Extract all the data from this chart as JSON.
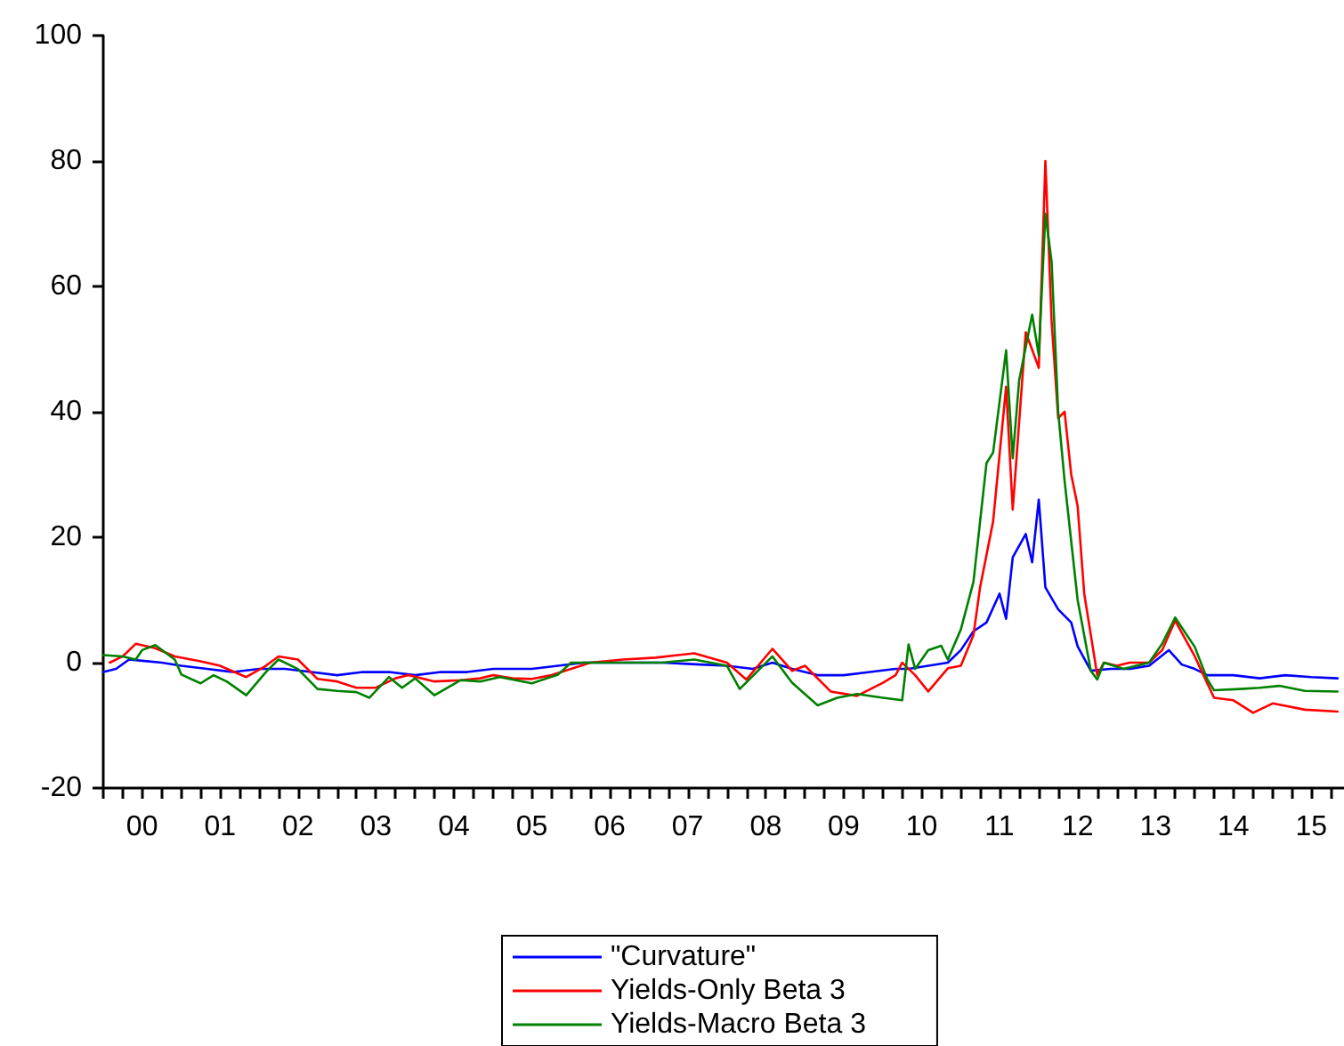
{
  "chart_data": {
    "type": "line",
    "legend": "bottom",
    "grid": false,
    "marker": "none",
    "line_style": "solid",
    "xlim": [
      "2000-01",
      "2015-12"
    ],
    "xticks": [
      {
        "value": "2000-01",
        "label": null
      },
      {
        "value": "2000-04",
        "label": null
      },
      {
        "value": "2000-07",
        "label": "00"
      },
      {
        "value": "2000-10",
        "label": null
      },
      {
        "value": "2001-01",
        "label": null
      },
      {
        "value": "2001-04",
        "label": null
      },
      {
        "value": "2001-07",
        "label": "01"
      },
      {
        "value": "2001-10",
        "label": null
      },
      {
        "value": "2002-01",
        "label": null
      },
      {
        "value": "2002-04",
        "label": null
      },
      {
        "value": "2002-07",
        "label": "02"
      },
      {
        "value": "2002-10",
        "label": null
      },
      {
        "value": "2003-01",
        "label": null
      },
      {
        "value": "2003-04",
        "label": null
      },
      {
        "value": "2003-07",
        "label": "03"
      },
      {
        "value": "2003-10",
        "label": null
      },
      {
        "value": "2004-01",
        "label": null
      },
      {
        "value": "2004-04",
        "label": null
      },
      {
        "value": "2004-07",
        "label": "04"
      },
      {
        "value": "2004-10",
        "label": null
      },
      {
        "value": "2005-01",
        "label": null
      },
      {
        "value": "2005-04",
        "label": null
      },
      {
        "value": "2005-07",
        "label": "05"
      },
      {
        "value": "2005-10",
        "label": null
      },
      {
        "value": "2006-01",
        "label": null
      },
      {
        "value": "2006-04",
        "label": null
      },
      {
        "value": "2006-07",
        "label": "06"
      },
      {
        "value": "2006-10",
        "label": null
      },
      {
        "value": "2007-01",
        "label": null
      },
      {
        "value": "2007-04",
        "label": null
      },
      {
        "value": "2007-07",
        "label": "07"
      },
      {
        "value": "2007-10",
        "label": null
      },
      {
        "value": "2008-01",
        "label": null
      },
      {
        "value": "2008-04",
        "label": null
      },
      {
        "value": "2008-07",
        "label": "08"
      },
      {
        "value": "2008-10",
        "label": null
      },
      {
        "value": "2009-01",
        "label": null
      },
      {
        "value": "2009-04",
        "label": null
      },
      {
        "value": "2009-07",
        "label": "09"
      },
      {
        "value": "2009-10",
        "label": null
      },
      {
        "value": "2010-01",
        "label": null
      },
      {
        "value": "2010-04",
        "label": null
      },
      {
        "value": "2010-07",
        "label": "10"
      },
      {
        "value": "2010-10",
        "label": null
      },
      {
        "value": "2011-01",
        "label": null
      },
      {
        "value": "2011-04",
        "label": null
      },
      {
        "value": "2011-07",
        "label": "11"
      },
      {
        "value": "2011-10",
        "label": null
      },
      {
        "value": "2012-01",
        "label": null
      },
      {
        "value": "2012-04",
        "label": null
      },
      {
        "value": "2012-07",
        "label": "12"
      },
      {
        "value": "2012-10",
        "label": null
      },
      {
        "value": "2013-01",
        "label": null
      },
      {
        "value": "2013-04",
        "label": null
      },
      {
        "value": "2013-07",
        "label": "13"
      },
      {
        "value": "2013-10",
        "label": null
      },
      {
        "value": "2014-01",
        "label": null
      },
      {
        "value": "2014-04",
        "label": null
      },
      {
        "value": "2014-07",
        "label": "14"
      },
      {
        "value": "2014-10",
        "label": null
      },
      {
        "value": "2015-01",
        "label": null
      },
      {
        "value": "2015-04",
        "label": null
      },
      {
        "value": "2015-07",
        "label": "15"
      },
      {
        "value": "2015-10",
        "label": null
      }
    ],
    "ylim": [
      -20,
      100
    ],
    "yticks": [
      -20,
      0,
      20,
      40,
      60,
      80,
      100
    ],
    "series": [
      {
        "name": "\"Curvature\"",
        "color": "#0000ff",
        "x": [
          "2000-01",
          "2000-03",
          "2000-05",
          "2000-07",
          "2000-10",
          "2001-01",
          "2001-05",
          "2001-09",
          "2002-01",
          "2002-05",
          "2002-09",
          "2003-01",
          "2003-05",
          "2003-09",
          "2004-01",
          "2004-05",
          "2004-09",
          "2005-01",
          "2005-07",
          "2005-11",
          "2006-03",
          "2006-09",
          "2007-03",
          "2007-09",
          "2008-01",
          "2008-05",
          "2008-08",
          "2008-11",
          "2009-03",
          "2009-07",
          "2009-11",
          "2010-03",
          "2010-05",
          "2010-08",
          "2010-11",
          "2011-01",
          "2011-03",
          "2011-05",
          "2011-07",
          "2011-08",
          "2011-09",
          "2011-11",
          "2011-12",
          "2012-01",
          "2012-02",
          "2012-04",
          "2012-06",
          "2012-07",
          "2012-09",
          "2012-12",
          "2013-03",
          "2013-06",
          "2013-09",
          "2013-11",
          "2014-01",
          "2014-03",
          "2014-07",
          "2014-11",
          "2015-03",
          "2015-07",
          "2015-11"
        ],
        "values": [
          -1.5,
          -1,
          0.5,
          0.3,
          0,
          -0.5,
          -1,
          -1.5,
          -1,
          -1,
          -1.5,
          -2,
          -1.5,
          -1.5,
          -2,
          -1.5,
          -1.5,
          -1,
          -1,
          -0.5,
          0,
          0,
          0,
          -0.3,
          -0.5,
          -1,
          0,
          -1,
          -2,
          -2,
          -1.5,
          -1,
          -1,
          -0.5,
          0,
          2,
          5,
          6.4,
          11,
          7,
          16.8,
          20.5,
          16,
          26,
          12,
          8.5,
          6.4,
          2.6,
          -1.3,
          -1,
          -1,
          -0.5,
          2,
          -0.3,
          -1,
          -2,
          -2,
          -2.5,
          -2,
          -2.3,
          -2.5
        ]
      },
      {
        "name": "Yields-Only Beta 3",
        "color": "#ff0000",
        "x": [
          "2000-02",
          "2000-04",
          "2000-06",
          "2000-09",
          "2000-12",
          "2001-04",
          "2001-07",
          "2001-11",
          "2002-02",
          "2002-04",
          "2002-07",
          "2002-10",
          "2003-01",
          "2003-04",
          "2003-07",
          "2003-10",
          "2003-12",
          "2004-04",
          "2004-08",
          "2004-11",
          "2005-01",
          "2005-04",
          "2005-07",
          "2005-10",
          "2006-01",
          "2006-04",
          "2006-09",
          "2007-02",
          "2007-08",
          "2008-01",
          "2008-04",
          "2008-08",
          "2008-11",
          "2009-01",
          "2009-05",
          "2009-09",
          "2010-01",
          "2010-03",
          "2010-04",
          "2010-06",
          "2010-08",
          "2010-11",
          "2011-01",
          "2011-03",
          "2011-04",
          "2011-06",
          "2011-08",
          "2011-09",
          "2011-11",
          "2012-01",
          "2012-02",
          "2012-03",
          "2012-04",
          "2012-05",
          "2012-06",
          "2012-07",
          "2012-08",
          "2012-10",
          "2012-11",
          "2013-01",
          "2013-03",
          "2013-06",
          "2013-08",
          "2013-10",
          "2014-01",
          "2014-02",
          "2014-04",
          "2014-07",
          "2014-10",
          "2015-01",
          "2015-06",
          "2015-11"
        ],
        "values": [
          0,
          1,
          3,
          2.3,
          1,
          0.2,
          -0.5,
          -2.3,
          -0.5,
          1,
          0.5,
          -2.6,
          -3,
          -4,
          -4,
          -2.5,
          -2,
          -3,
          -2.8,
          -2.5,
          -2,
          -2.5,
          -2.6,
          -2,
          -1,
          0,
          0.5,
          0.8,
          1.5,
          0,
          -2.7,
          2.2,
          -1.3,
          -0.5,
          -4.6,
          -5.3,
          -3.2,
          -2,
          0,
          -2,
          -4.6,
          -0.9,
          -0.5,
          4.4,
          12,
          22.5,
          44,
          24.4,
          52.7,
          47,
          80,
          54.5,
          39,
          40,
          30,
          25,
          11,
          -2,
          0,
          -0.5,
          0,
          0,
          2,
          6.7,
          1,
          -1.3,
          -5.6,
          -6,
          -8,
          -6.5,
          -7.5,
          -7.8
        ]
      },
      {
        "name": "Yields-Macro Beta 3",
        "color": "#008000",
        "x": [
          "2000-01",
          "2000-04",
          "2000-06",
          "2000-07",
          "2000-09",
          "2000-12",
          "2001-01",
          "2001-04",
          "2001-06",
          "2001-08",
          "2001-11",
          "2002-02",
          "2002-04",
          "2002-07",
          "2002-10",
          "2003-01",
          "2003-04",
          "2003-06",
          "2003-09",
          "2003-11",
          "2004-01",
          "2004-04",
          "2004-08",
          "2004-11",
          "2005-02",
          "2005-07",
          "2005-11",
          "2006-01",
          "2006-09",
          "2007-03",
          "2007-08",
          "2008-01",
          "2008-03",
          "2008-08",
          "2008-11",
          "2009-03",
          "2009-06",
          "2009-09",
          "2010-01",
          "2010-04",
          "2010-05",
          "2010-06",
          "2010-08",
          "2010-10",
          "2010-11",
          "2011-01",
          "2011-03",
          "2011-05",
          "2011-06",
          "2011-08",
          "2011-09",
          "2011-10",
          "2011-12",
          "2012-01",
          "2012-02",
          "2012-03",
          "2012-04",
          "2012-05",
          "2012-07",
          "2012-09",
          "2012-10",
          "2012-11",
          "2013-02",
          "2013-06",
          "2013-08",
          "2013-10",
          "2014-01",
          "2014-03",
          "2014-04",
          "2014-08",
          "2014-11",
          "2015-02",
          "2015-06",
          "2015-11"
        ],
        "values": [
          1.2,
          1,
          0.5,
          2,
          2.8,
          0.5,
          -1.9,
          -3.3,
          -2,
          -3,
          -5.2,
          -1.5,
          0.5,
          -1,
          -4.2,
          -4.5,
          -4.7,
          -5.6,
          -2.3,
          -4,
          -2.5,
          -5.2,
          -2.8,
          -3,
          -2.3,
          -3.3,
          -1.9,
          0,
          0,
          0,
          0.5,
          -0.5,
          -4.2,
          1,
          -3.2,
          -6.8,
          -5.6,
          -5,
          -5.6,
          -6,
          2.9,
          -1,
          2,
          2.7,
          0.5,
          5.3,
          12.9,
          31.8,
          33.5,
          49.8,
          32.6,
          45,
          55.5,
          49,
          71.6,
          64,
          40,
          29,
          10,
          -1.3,
          -2.7,
          0,
          -1,
          0,
          3,
          7.2,
          2.5,
          -2.7,
          -4.4,
          -4.2,
          -4,
          -3.7,
          -4.5,
          -4.6
        ]
      }
    ]
  }
}
